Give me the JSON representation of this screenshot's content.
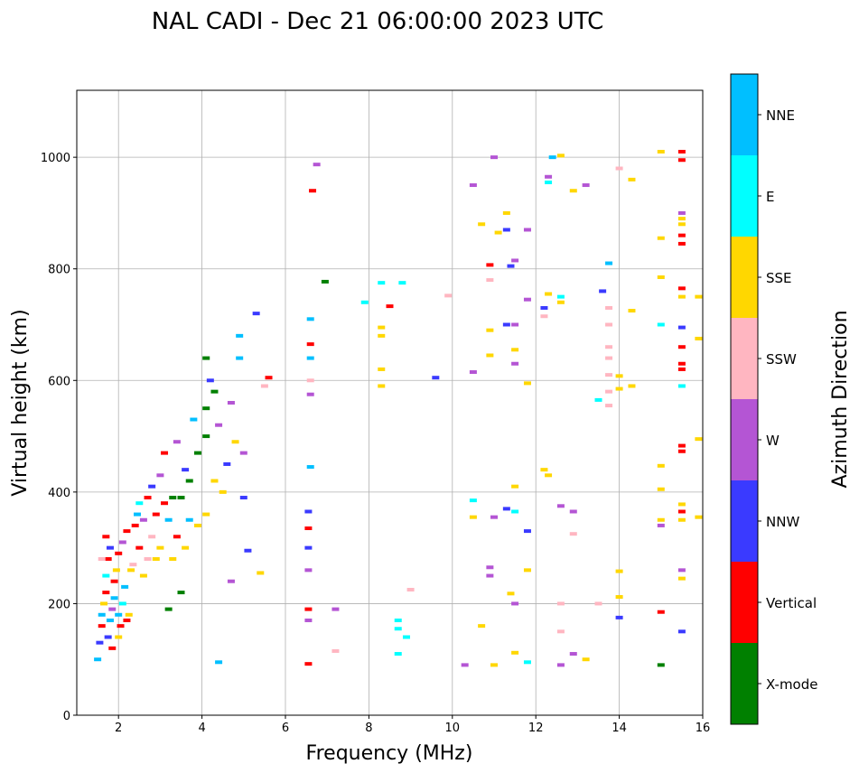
{
  "chart_data": {
    "type": "scatter",
    "title": "NAL CADI - Dec 21 06:00:00 2023 UTC",
    "xlabel": "Frequency (MHz)",
    "ylabel": "Virtual height (km)",
    "xlim": [
      1,
      16
    ],
    "ylim": [
      0,
      1120
    ],
    "xticks": [
      2,
      4,
      6,
      8,
      10,
      12,
      14,
      16
    ],
    "yticks": [
      0,
      200,
      400,
      600,
      800,
      1000
    ],
    "grid": true,
    "colorbar": {
      "label": "Azimuth Direction",
      "placement": "right",
      "categories": [
        {
          "name": "X-mode",
          "color": "#008000"
        },
        {
          "name": "Vertical",
          "color": "#ff0000"
        },
        {
          "name": "NNW",
          "color": "#3a3aff"
        },
        {
          "name": "W",
          "color": "#b455d4"
        },
        {
          "name": "SSW",
          "color": "#ffb6c1"
        },
        {
          "name": "SSE",
          "color": "#ffd700"
        },
        {
          "name": "E",
          "color": "#00ffff"
        },
        {
          "name": "NNE",
          "color": "#00bfff"
        }
      ]
    },
    "points_format": [
      "frequency_MHz",
      "virtual_height_km",
      "direction_index"
    ],
    "points": [
      [
        1.5,
        100,
        7
      ],
      [
        1.55,
        130,
        2
      ],
      [
        1.6,
        160,
        1
      ],
      [
        1.6,
        180,
        7
      ],
      [
        1.65,
        200,
        5
      ],
      [
        1.7,
        220,
        1
      ],
      [
        1.7,
        250,
        6
      ],
      [
        1.75,
        280,
        1
      ],
      [
        1.8,
        300,
        2
      ],
      [
        1.8,
        170,
        7
      ],
      [
        1.85,
        190,
        3
      ],
      [
        1.9,
        210,
        7
      ],
      [
        1.9,
        240,
        1
      ],
      [
        1.95,
        260,
        5
      ],
      [
        2.0,
        290,
        1
      ],
      [
        2.0,
        180,
        7
      ],
      [
        2.05,
        160,
        1
      ],
      [
        2.1,
        200,
        6
      ],
      [
        2.1,
        310,
        3
      ],
      [
        2.15,
        230,
        7
      ],
      [
        2.2,
        170,
        1
      ],
      [
        2.2,
        330,
        1
      ],
      [
        1.6,
        280,
        4
      ],
      [
        1.7,
        320,
        1
      ],
      [
        1.75,
        140,
        2
      ],
      [
        1.85,
        120,
        1
      ],
      [
        2.0,
        140,
        5
      ],
      [
        2.25,
        180,
        5
      ],
      [
        2.3,
        260,
        5
      ],
      [
        2.35,
        270,
        4
      ],
      [
        2.4,
        340,
        1
      ],
      [
        2.45,
        360,
        7
      ],
      [
        2.5,
        380,
        6
      ],
      [
        2.5,
        300,
        1
      ],
      [
        2.6,
        350,
        3
      ],
      [
        2.6,
        250,
        5
      ],
      [
        2.7,
        280,
        4
      ],
      [
        2.7,
        390,
        1
      ],
      [
        2.8,
        320,
        4
      ],
      [
        2.8,
        410,
        2
      ],
      [
        2.9,
        360,
        1
      ],
      [
        2.9,
        280,
        5
      ],
      [
        3.0,
        300,
        5
      ],
      [
        3.0,
        430,
        3
      ],
      [
        3.1,
        380,
        1
      ],
      [
        3.1,
        470,
        1
      ],
      [
        3.2,
        350,
        7
      ],
      [
        3.2,
        190,
        0
      ],
      [
        3.3,
        280,
        5
      ],
      [
        3.3,
        390,
        0
      ],
      [
        3.4,
        490,
        3
      ],
      [
        3.4,
        320,
        1
      ],
      [
        3.5,
        390,
        0
      ],
      [
        3.5,
        220,
        0
      ],
      [
        3.6,
        300,
        5
      ],
      [
        3.6,
        440,
        2
      ],
      [
        3.7,
        350,
        7
      ],
      [
        3.7,
        420,
        0
      ],
      [
        3.8,
        530,
        7
      ],
      [
        3.9,
        340,
        5
      ],
      [
        3.9,
        470,
        0
      ],
      [
        4.1,
        360,
        5
      ],
      [
        4.1,
        500,
        0
      ],
      [
        4.1,
        550,
        0
      ],
      [
        4.1,
        640,
        0
      ],
      [
        4.2,
        600,
        2
      ],
      [
        4.3,
        420,
        5
      ],
      [
        4.3,
        580,
        0
      ],
      [
        4.4,
        95,
        7
      ],
      [
        4.4,
        520,
        3
      ],
      [
        4.5,
        400,
        5
      ],
      [
        4.6,
        450,
        2
      ],
      [
        4.7,
        240,
        3
      ],
      [
        4.7,
        560,
        3
      ],
      [
        4.8,
        490,
        5
      ],
      [
        4.9,
        640,
        7
      ],
      [
        4.9,
        680,
        7
      ],
      [
        5.0,
        390,
        2
      ],
      [
        5.0,
        470,
        3
      ],
      [
        5.1,
        295,
        2
      ],
      [
        5.3,
        720,
        2
      ],
      [
        5.4,
        255,
        5
      ],
      [
        5.5,
        590,
        4
      ],
      [
        5.6,
        605,
        1
      ],
      [
        6.55,
        92,
        1
      ],
      [
        6.55,
        170,
        3
      ],
      [
        6.55,
        190,
        1
      ],
      [
        6.55,
        260,
        3
      ],
      [
        6.55,
        300,
        2
      ],
      [
        6.55,
        335,
        1
      ],
      [
        6.55,
        365,
        2
      ],
      [
        6.6,
        445,
        7
      ],
      [
        6.6,
        575,
        3
      ],
      [
        6.6,
        600,
        4
      ],
      [
        6.6,
        640,
        7
      ],
      [
        6.6,
        665,
        1
      ],
      [
        6.6,
        710,
        7
      ],
      [
        6.65,
        940,
        1
      ],
      [
        6.75,
        987,
        3
      ],
      [
        6.95,
        777,
        0
      ],
      [
        7.2,
        190,
        3
      ],
      [
        7.2,
        115,
        4
      ],
      [
        7.9,
        740,
        6
      ],
      [
        8.3,
        590,
        5
      ],
      [
        8.3,
        620,
        5
      ],
      [
        8.3,
        680,
        5
      ],
      [
        8.3,
        695,
        5
      ],
      [
        8.3,
        775,
        6
      ],
      [
        8.5,
        733,
        1
      ],
      [
        8.7,
        110,
        6
      ],
      [
        8.7,
        155,
        6
      ],
      [
        8.7,
        170,
        6
      ],
      [
        8.8,
        775,
        6
      ],
      [
        8.9,
        140,
        6
      ],
      [
        9.0,
        225,
        4
      ],
      [
        9.6,
        605,
        2
      ],
      [
        9.9,
        752,
        4
      ],
      [
        10.3,
        90,
        3
      ],
      [
        10.5,
        355,
        5
      ],
      [
        10.5,
        385,
        6
      ],
      [
        10.5,
        615,
        3
      ],
      [
        10.5,
        950,
        3
      ],
      [
        10.7,
        160,
        5
      ],
      [
        10.7,
        880,
        5
      ],
      [
        10.9,
        250,
        3
      ],
      [
        10.9,
        265,
        3
      ],
      [
        10.9,
        645,
        5
      ],
      [
        10.9,
        690,
        5
      ],
      [
        10.9,
        780,
        4
      ],
      [
        10.9,
        807,
        1
      ],
      [
        11.0,
        90,
        5
      ],
      [
        11.0,
        355,
        3
      ],
      [
        11.0,
        1000,
        3
      ],
      [
        11.1,
        865,
        5
      ],
      [
        11.3,
        370,
        2
      ],
      [
        11.3,
        700,
        2
      ],
      [
        11.3,
        870,
        2
      ],
      [
        11.3,
        900,
        5
      ],
      [
        11.4,
        218,
        5
      ],
      [
        11.4,
        805,
        2
      ],
      [
        11.5,
        112,
        5
      ],
      [
        11.5,
        200,
        3
      ],
      [
        11.5,
        365,
        6
      ],
      [
        11.5,
        410,
        5
      ],
      [
        11.5,
        630,
        3
      ],
      [
        11.5,
        655,
        5
      ],
      [
        11.5,
        700,
        3
      ],
      [
        11.5,
        815,
        3
      ],
      [
        11.8,
        95,
        6
      ],
      [
        11.8,
        260,
        5
      ],
      [
        11.8,
        330,
        2
      ],
      [
        11.8,
        595,
        5
      ],
      [
        11.8,
        745,
        3
      ],
      [
        11.8,
        870,
        3
      ],
      [
        12.2,
        440,
        5
      ],
      [
        12.2,
        715,
        4
      ],
      [
        12.2,
        730,
        2
      ],
      [
        12.3,
        430,
        5
      ],
      [
        12.3,
        755,
        5
      ],
      [
        12.3,
        955,
        6
      ],
      [
        12.3,
        965,
        3
      ],
      [
        12.4,
        1000,
        7
      ],
      [
        12.6,
        90,
        3
      ],
      [
        12.6,
        150,
        4
      ],
      [
        12.6,
        200,
        4
      ],
      [
        12.6,
        375,
        3
      ],
      [
        12.6,
        740,
        5
      ],
      [
        12.6,
        750,
        6
      ],
      [
        12.6,
        1003,
        5
      ],
      [
        12.9,
        110,
        3
      ],
      [
        12.9,
        325,
        4
      ],
      [
        12.9,
        365,
        3
      ],
      [
        12.9,
        940,
        5
      ],
      [
        13.2,
        100,
        5
      ],
      [
        13.2,
        950,
        3
      ],
      [
        13.5,
        200,
        4
      ],
      [
        13.5,
        565,
        6
      ],
      [
        13.6,
        760,
        2
      ],
      [
        13.75,
        555,
        4
      ],
      [
        13.75,
        580,
        4
      ],
      [
        13.75,
        610,
        4
      ],
      [
        13.75,
        640,
        4
      ],
      [
        13.75,
        660,
        4
      ],
      [
        13.75,
        700,
        4
      ],
      [
        13.75,
        730,
        4
      ],
      [
        13.75,
        810,
        7
      ],
      [
        14.0,
        175,
        2
      ],
      [
        14.0,
        212,
        5
      ],
      [
        14.0,
        258,
        5
      ],
      [
        14.0,
        585,
        5
      ],
      [
        14.0,
        608,
        5
      ],
      [
        14.0,
        980,
        4
      ],
      [
        14.3,
        590,
        5
      ],
      [
        14.3,
        960,
        5
      ],
      [
        14.3,
        725,
        5
      ],
      [
        15.0,
        90,
        0
      ],
      [
        15.0,
        185,
        1
      ],
      [
        15.0,
        340,
        3
      ],
      [
        15.0,
        350,
        5
      ],
      [
        15.0,
        405,
        5
      ],
      [
        15.0,
        447,
        5
      ],
      [
        15.0,
        700,
        6
      ],
      [
        15.0,
        785,
        5
      ],
      [
        15.0,
        855,
        5
      ],
      [
        15.0,
        1010,
        5
      ],
      [
        15.5,
        150,
        2
      ],
      [
        15.5,
        245,
        5
      ],
      [
        15.5,
        260,
        3
      ],
      [
        15.5,
        350,
        5
      ],
      [
        15.5,
        365,
        1
      ],
      [
        15.5,
        378,
        5
      ],
      [
        15.5,
        473,
        1
      ],
      [
        15.5,
        483,
        1
      ],
      [
        15.5,
        590,
        6
      ],
      [
        15.5,
        620,
        1
      ],
      [
        15.5,
        630,
        1
      ],
      [
        15.5,
        660,
        1
      ],
      [
        15.5,
        695,
        2
      ],
      [
        15.5,
        750,
        5
      ],
      [
        15.5,
        765,
        1
      ],
      [
        15.5,
        845,
        1
      ],
      [
        15.5,
        860,
        1
      ],
      [
        15.5,
        880,
        5
      ],
      [
        15.5,
        890,
        5
      ],
      [
        15.5,
        900,
        3
      ],
      [
        15.5,
        995,
        1
      ],
      [
        15.5,
        1010,
        1
      ],
      [
        15.9,
        495,
        5
      ],
      [
        15.9,
        675,
        5
      ],
      [
        15.9,
        750,
        5
      ],
      [
        15.9,
        355,
        5
      ]
    ]
  }
}
